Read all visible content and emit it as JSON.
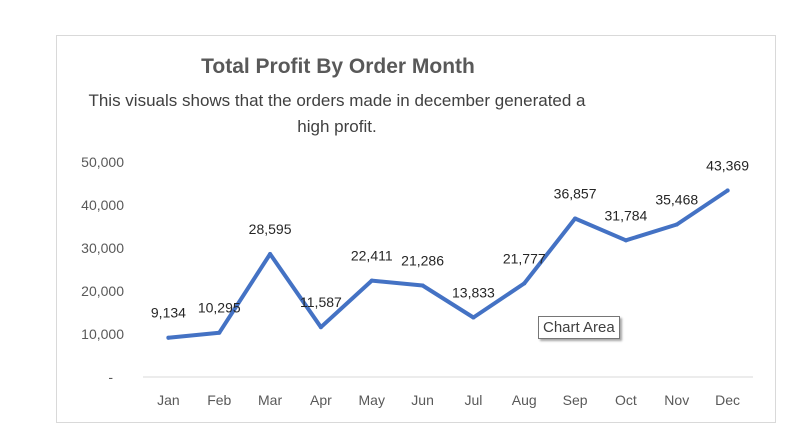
{
  "chart_data": {
    "type": "line",
    "title": "Total Profit By Order Month",
    "subtitle": "This visuals shows that the orders made in december generated a high profit.",
    "categories": [
      "Jan",
      "Feb",
      "Mar",
      "Apr",
      "May",
      "Jun",
      "Jul",
      "Aug",
      "Sep",
      "Oct",
      "Nov",
      "Dec"
    ],
    "values": [
      9134,
      10295,
      28595,
      11587,
      22411,
      21286,
      13833,
      21777,
      36857,
      31784,
      35468,
      43369
    ],
    "data_labels": [
      "9,134",
      "10,295",
      "28,595",
      "11,587",
      "22,411",
      "21,286",
      "13,833",
      "21,777",
      "36,857",
      "31,784",
      "35,468",
      "43,369"
    ],
    "y_ticks": [
      "-",
      "10,000",
      "20,000",
      "30,000",
      "40,000",
      "50,000"
    ],
    "ylim": [
      0,
      50000
    ],
    "grid": false,
    "legend": "none",
    "line_color": "#4472c4"
  },
  "tooltip": {
    "text": "Chart Area"
  }
}
